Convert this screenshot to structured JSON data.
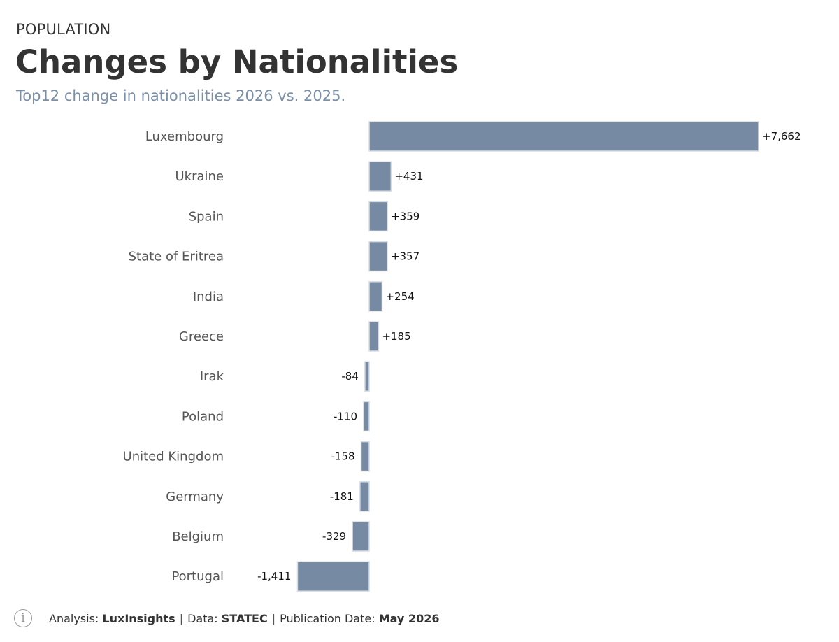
{
  "header": {
    "kicker": "POPULATION",
    "title": "Changes by Nationalities",
    "subtitle": "Top12 change in nationalities 2026 vs. 2025."
  },
  "chart_data": {
    "type": "bar",
    "orientation": "horizontal",
    "categories": [
      "Luxembourg",
      "Ukraine",
      "Spain",
      "State of Eritrea",
      "India",
      "Greece",
      "Irak",
      "Poland",
      "United Kingdom",
      "Germany",
      "Belgium",
      "Portugal"
    ],
    "values": [
      7662,
      431,
      359,
      357,
      254,
      185,
      -84,
      -110,
      -158,
      -181,
      -329,
      -1411
    ],
    "value_labels": [
      "+7,662",
      "+431",
      "+359",
      "+357",
      "+254",
      "+185",
      "-84",
      "-110",
      "-158",
      "-181",
      "-329",
      "-1,411"
    ],
    "bar_color": "#768ba3",
    "grid": false,
    "legend": "none"
  },
  "footer": {
    "icon": "info-icon",
    "analysis_label": "Analysis:",
    "analysis_value": "LuxInsights",
    "data_label": "Data:",
    "data_value": "STATEC",
    "publication_label": "Publication Date:",
    "publication_value": "May 2026",
    "separator": "|"
  }
}
